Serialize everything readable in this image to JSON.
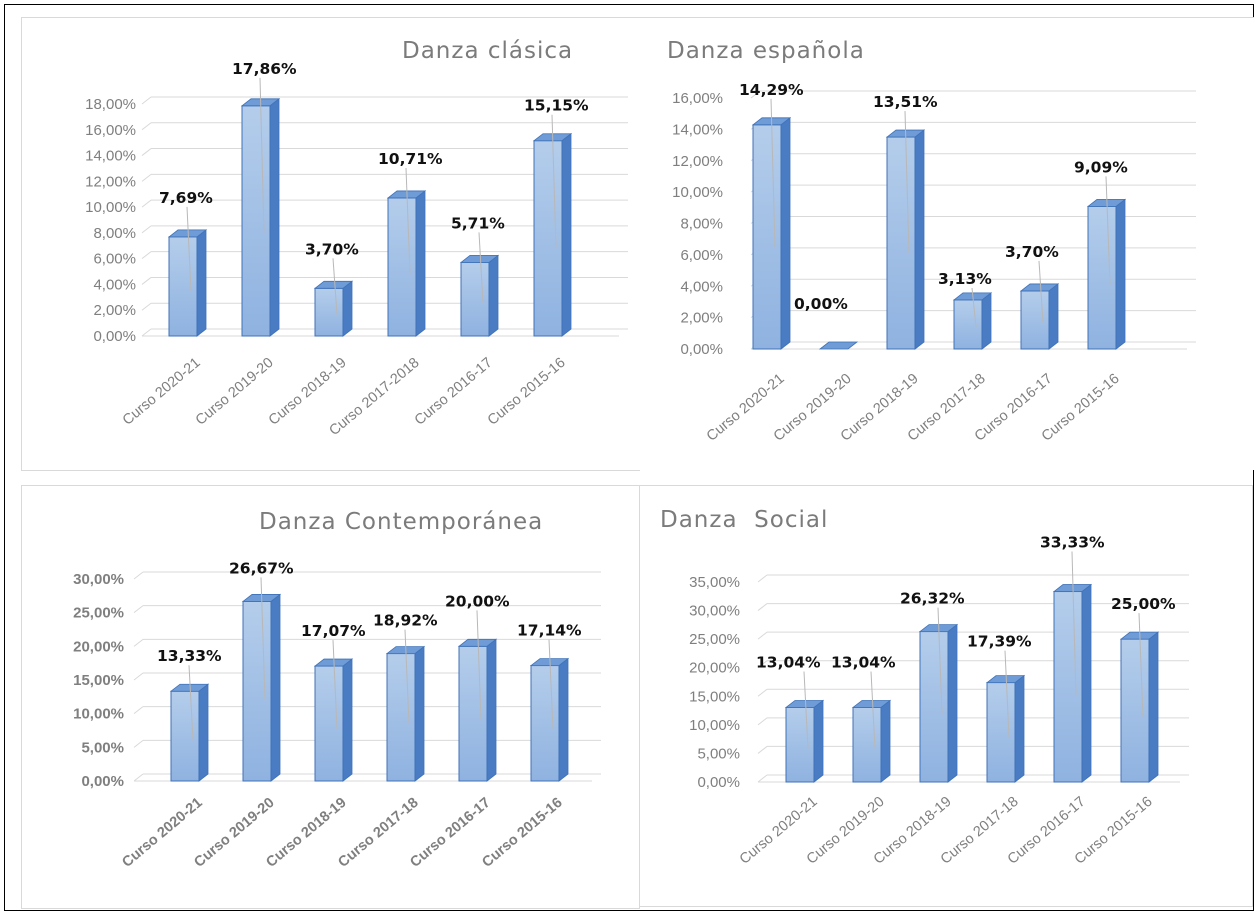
{
  "colors": {
    "bar_front_top": "#b4cdeb",
    "bar_front_bottom": "#8fb2e0",
    "bar_side": "#4a7cc4",
    "bar_top": "#6f9bd6",
    "bar_outline": "#3f72b8",
    "grid": "#d9d9d9",
    "tick": "#7f7f7f",
    "label": "#111111"
  },
  "chart_data": [
    {
      "type": "bar",
      "title": "Danza clásica",
      "categories": [
        "Curso 2020-21",
        "Curso 2019-20",
        "Curso 2018-19",
        "Curso 2017-2018",
        "Curso 2016-17",
        "Curso 2015-16"
      ],
      "values": [
        7.69,
        17.86,
        3.7,
        10.71,
        5.71,
        15.15
      ],
      "value_labels": [
        "7,69%",
        "17,86%",
        "3,70%",
        "10,71%",
        "5,71%",
        "15,15%"
      ],
      "y_ticks": [
        "0,00%",
        "2,00%",
        "4,00%",
        "6,00%",
        "8,00%",
        "10,00%",
        "12,00%",
        "14,00%",
        "16,00%",
        "18,00%"
      ],
      "ylim": [
        0,
        18
      ],
      "grid": true,
      "tick_bold": false
    },
    {
      "type": "bar",
      "title": "Danza española",
      "categories": [
        "Curso 2020-21",
        "Curso 2019-20",
        "Curso 2018-19",
        "Curso 2017-18",
        "Curso 2016-17",
        "Curso 2015-16"
      ],
      "values": [
        14.29,
        0.0,
        13.51,
        3.13,
        3.7,
        9.09
      ],
      "value_labels": [
        "14,29%",
        "0,00%",
        "13,51%",
        "3,13%",
        "3,70%",
        "9,09%"
      ],
      "y_ticks": [
        "0,00%",
        "2,00%",
        "4,00%",
        "6,00%",
        "8,00%",
        "10,00%",
        "12,00%",
        "14,00%",
        "16,00%"
      ],
      "ylim": [
        0,
        16
      ],
      "grid": true,
      "tick_bold": false
    },
    {
      "type": "bar",
      "title": "Danza Contemporánea",
      "categories": [
        "Curso 2020-21",
        "Curso 2019-20",
        "Curso 2018-19",
        "Curso 2017-18",
        "Curso 2016-17",
        "Curso 2015-16"
      ],
      "values": [
        13.33,
        26.67,
        17.07,
        18.92,
        20.0,
        17.14
      ],
      "value_labels": [
        "13,33%",
        "26,67%",
        "17,07%",
        "18,92%",
        "20,00%",
        "17,14%"
      ],
      "y_ticks": [
        "0,00%",
        "5,00%",
        "10,00%",
        "15,00%",
        "20,00%",
        "25,00%",
        "30,00%"
      ],
      "ylim": [
        0,
        30
      ],
      "grid": true,
      "tick_bold": true
    },
    {
      "type": "bar",
      "title": "Danza  Social",
      "categories": [
        "Curso 2020-21",
        "Curso 2019-20",
        "Curso 2018-19",
        "Curso 2017-18",
        "Curso 2016-17",
        "Curso 2015-16"
      ],
      "values": [
        13.04,
        13.04,
        26.32,
        17.39,
        33.33,
        25.0
      ],
      "value_labels": [
        "13,04%",
        "13,04%",
        "26,32%",
        "17,39%",
        "33,33%",
        "25,00%"
      ],
      "y_ticks": [
        "0,00%",
        "5,00%",
        "10,00%",
        "15,00%",
        "20,00%",
        "25,00%",
        "30,00%",
        "35,00%"
      ],
      "ylim": [
        0,
        35
      ],
      "grid": true,
      "tick_bold": false
    }
  ]
}
